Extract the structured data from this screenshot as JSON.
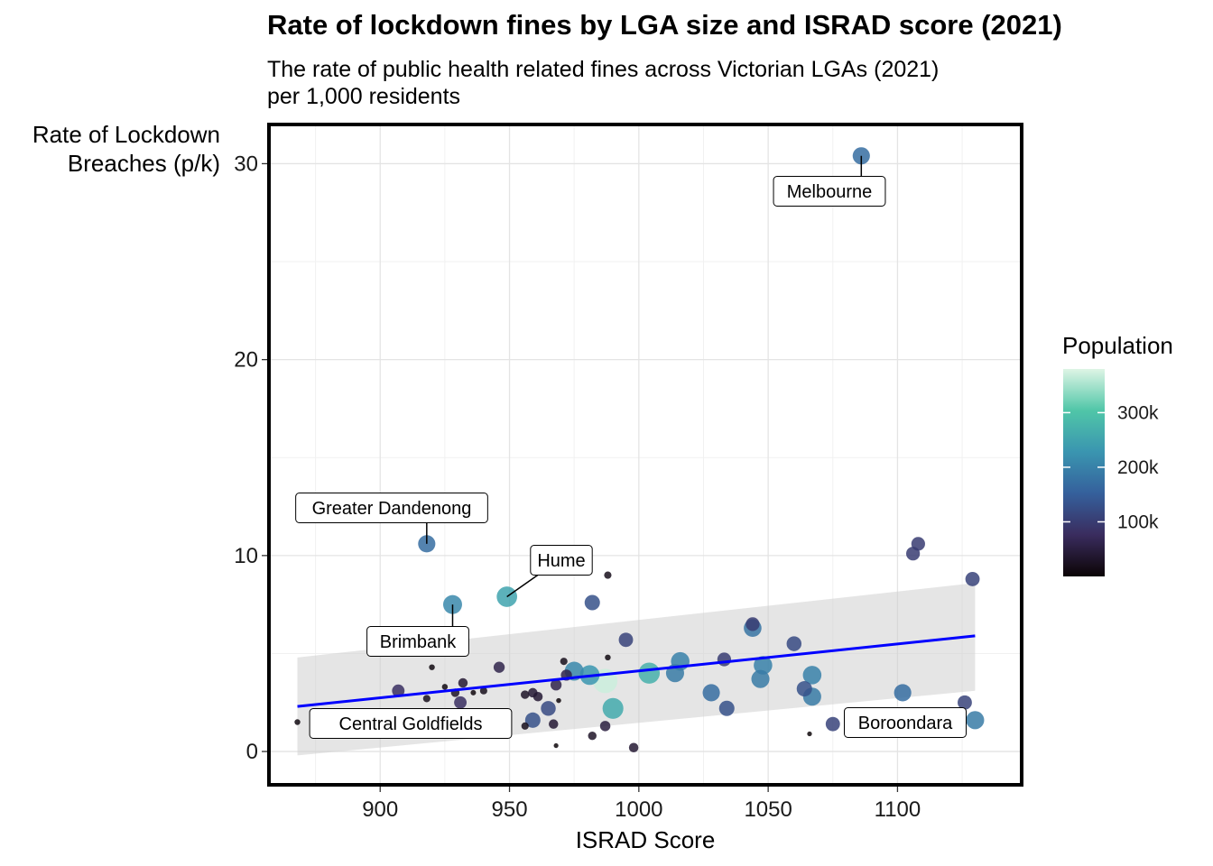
{
  "title": "Rate of lockdown fines by LGA size and ISRAD score (2021)",
  "subtitle": "The rate of public health related fines across Victorian LGAs (2021)\nper 1,000 residents",
  "chart_data": {
    "type": "scatter",
    "xlabel": "ISRAD Score",
    "ylabel": [
      "Rate of Lockdown",
      "Breaches (p/k)"
    ],
    "x_ticks": [
      900,
      950,
      1000,
      1050,
      1100
    ],
    "y_ticks": [
      0,
      10,
      20,
      30
    ],
    "xlim": [
      857,
      1148
    ],
    "ylim": [
      -1.7,
      32
    ],
    "grid": true,
    "legend": {
      "title": "Population",
      "position": "right",
      "ticks": [
        {
          "label": "100k",
          "value": 100000
        },
        {
          "label": "200k",
          "value": 200000
        },
        {
          "label": "300k",
          "value": 300000
        }
      ],
      "range": [
        0,
        380000
      ],
      "palette": [
        "#0b0405",
        "#3a2c5e",
        "#35609c",
        "#3a95b0",
        "#50c6a8",
        "#def5e5"
      ]
    },
    "trend_line": {
      "color": "#0000ff",
      "x": [
        868,
        1130
      ],
      "y": [
        2.3,
        5.9
      ],
      "ci_lower": [
        -0.2,
        3.1
      ],
      "ci_upper": [
        4.8,
        8.6
      ]
    },
    "points": [
      {
        "x": 1086,
        "y": 30.4,
        "pop": 170000
      },
      {
        "x": 918,
        "y": 10.6,
        "pop": 170000
      },
      {
        "x": 949,
        "y": 7.9,
        "pop": 250000
      },
      {
        "x": 928,
        "y": 7.5,
        "pop": 210000
      },
      {
        "x": 1108,
        "y": 10.6,
        "pop": 100000
      },
      {
        "x": 1106,
        "y": 10.1,
        "pop": 100000
      },
      {
        "x": 1129,
        "y": 8.8,
        "pop": 110000
      },
      {
        "x": 988,
        "y": 9.0,
        "pop": 20000
      },
      {
        "x": 982,
        "y": 7.6,
        "pop": 130000
      },
      {
        "x": 995,
        "y": 5.7,
        "pop": 110000
      },
      {
        "x": 1044,
        "y": 6.5,
        "pop": 100000
      },
      {
        "x": 1044,
        "y": 6.3,
        "pop": 180000
      },
      {
        "x": 1060,
        "y": 5.5,
        "pop": 120000
      },
      {
        "x": 1033,
        "y": 4.7,
        "pop": 100000
      },
      {
        "x": 1016,
        "y": 4.6,
        "pop": 200000
      },
      {
        "x": 1014,
        "y": 4.0,
        "pop": 190000
      },
      {
        "x": 1004,
        "y": 4.0,
        "pop": 270000
      },
      {
        "x": 1048,
        "y": 4.4,
        "pop": 200000
      },
      {
        "x": 1047,
        "y": 3.7,
        "pop": 190000
      },
      {
        "x": 1067,
        "y": 3.9,
        "pop": 200000
      },
      {
        "x": 1064,
        "y": 3.2,
        "pop": 130000
      },
      {
        "x": 1067,
        "y": 2.8,
        "pop": 190000
      },
      {
        "x": 1102,
        "y": 3.0,
        "pop": 170000
      },
      {
        "x": 1126,
        "y": 2.5,
        "pop": 110000
      },
      {
        "x": 1130,
        "y": 1.6,
        "pop": 190000
      },
      {
        "x": 1075,
        "y": 1.4,
        "pop": 110000
      },
      {
        "x": 1066,
        "y": 0.9,
        "pop": 5000
      },
      {
        "x": 1028,
        "y": 3.0,
        "pop": 170000
      },
      {
        "x": 1034,
        "y": 2.2,
        "pop": 130000
      },
      {
        "x": 990,
        "y": 2.2,
        "pop": 260000
      },
      {
        "x": 981,
        "y": 3.9,
        "pop": 230000
      },
      {
        "x": 975,
        "y": 4.1,
        "pop": 210000
      },
      {
        "x": 987,
        "y": 3.6,
        "pop": 370000
      },
      {
        "x": 971,
        "y": 4.6,
        "pop": 20000
      },
      {
        "x": 972,
        "y": 3.9,
        "pop": 60000
      },
      {
        "x": 968,
        "y": 3.4,
        "pop": 60000
      },
      {
        "x": 988,
        "y": 4.8,
        "pop": 10000
      },
      {
        "x": 946,
        "y": 4.3,
        "pop": 60000
      },
      {
        "x": 959,
        "y": 3.0,
        "pop": 40000
      },
      {
        "x": 956,
        "y": 2.9,
        "pop": 30000
      },
      {
        "x": 961,
        "y": 2.8,
        "pop": 40000
      },
      {
        "x": 965,
        "y": 2.2,
        "pop": 120000
      },
      {
        "x": 959,
        "y": 1.6,
        "pop": 130000
      },
      {
        "x": 956,
        "y": 1.3,
        "pop": 20000
      },
      {
        "x": 967,
        "y": 1.4,
        "pop": 40000
      },
      {
        "x": 987,
        "y": 1.3,
        "pop": 50000
      },
      {
        "x": 982,
        "y": 0.8,
        "pop": 30000
      },
      {
        "x": 998,
        "y": 0.2,
        "pop": 40000
      },
      {
        "x": 968,
        "y": 0.3,
        "pop": 5000
      },
      {
        "x": 907,
        "y": 3.1,
        "pop": 80000
      },
      {
        "x": 931,
        "y": 2.5,
        "pop": 80000
      },
      {
        "x": 932,
        "y": 3.5,
        "pop": 40000
      },
      {
        "x": 929,
        "y": 3.0,
        "pop": 30000
      },
      {
        "x": 940,
        "y": 3.1,
        "pop": 20000
      },
      {
        "x": 920,
        "y": 4.3,
        "pop": 10000
      },
      {
        "x": 918,
        "y": 2.7,
        "pop": 20000
      },
      {
        "x": 925,
        "y": 3.3,
        "pop": 10000
      },
      {
        "x": 943,
        "y": 1.5,
        "pop": 40000
      },
      {
        "x": 868,
        "y": 1.5,
        "pop": 10000
      },
      {
        "x": 931,
        "y": 5.1,
        "pop": 8000
      },
      {
        "x": 936,
        "y": 3.0,
        "pop": 8000
      },
      {
        "x": 969,
        "y": 2.6,
        "pop": 6000
      }
    ],
    "annotations": [
      {
        "text": "Melbourne",
        "x": 1086,
        "y": 30.4
      },
      {
        "text": "Greater Dandenong",
        "x": 918,
        "y": 10.6
      },
      {
        "text": "Hume",
        "x": 949,
        "y": 7.9
      },
      {
        "text": "Brimbank",
        "x": 928,
        "y": 7.5
      },
      {
        "text": "Central Goldfields",
        "x": 931,
        "y": 2.5
      },
      {
        "text": "Boroondara",
        "x": 1075,
        "y": 1.4
      }
    ]
  }
}
